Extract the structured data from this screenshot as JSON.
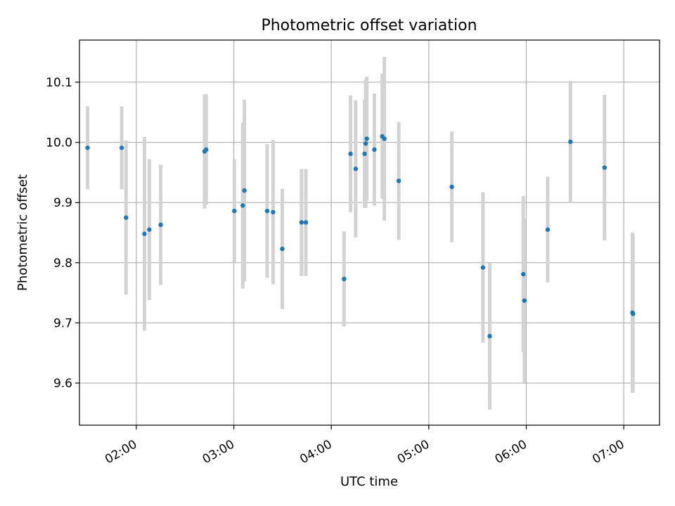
{
  "chart_data": {
    "type": "scatter",
    "title": "Photometric offset variation",
    "xlabel": "UTC time",
    "ylabel": "Photometric offset",
    "xlim": [
      "01:25",
      "07:22"
    ],
    "ylim": [
      9.53,
      10.17
    ],
    "x_ticks": [
      "02:00",
      "03:00",
      "04:00",
      "05:00",
      "06:00",
      "07:00"
    ],
    "y_ticks": [
      9.6,
      9.7,
      9.8,
      9.9,
      10.0,
      10.1
    ],
    "grid": true,
    "colors": {
      "marker": "#1f77b4",
      "errorbar": "#d3d3d3",
      "grid": "#b0b0b0",
      "axes": "#000000"
    },
    "points": [
      {
        "x": "01:30:00",
        "y": 9.991,
        "yerr": 0.069
      },
      {
        "x": "01:51:00",
        "y": 9.991,
        "yerr": 0.069
      },
      {
        "x": "01:53:40",
        "y": 9.875,
        "yerr": 0.128
      },
      {
        "x": "02:05:00",
        "y": 9.848,
        "yerr": 0.161
      },
      {
        "x": "02:08:00",
        "y": 9.855,
        "yerr": 0.117
      },
      {
        "x": "02:15:00",
        "y": 9.863,
        "yerr": 0.1
      },
      {
        "x": "02:42:00",
        "y": 9.985,
        "yerr": 0.095
      },
      {
        "x": "02:43:00",
        "y": 9.988,
        "yerr": 0.092
      },
      {
        "x": "03:00:20",
        "y": 9.886,
        "yerr": 0.086
      },
      {
        "x": "03:05:30",
        "y": 9.895,
        "yerr": 0.138
      },
      {
        "x": "03:06:30",
        "y": 9.92,
        "yerr": 0.151
      },
      {
        "x": "03:20:30",
        "y": 9.886,
        "yerr": 0.111
      },
      {
        "x": "03:24:10",
        "y": 9.884,
        "yerr": 0.12
      },
      {
        "x": "03:29:50",
        "y": 9.823,
        "yerr": 0.1
      },
      {
        "x": "03:41:40",
        "y": 9.867,
        "yerr": 0.089
      },
      {
        "x": "03:44:20",
        "y": 9.867,
        "yerr": 0.089
      },
      {
        "x": "04:07:50",
        "y": 9.773,
        "yerr": 0.079
      },
      {
        "x": "04:11:50",
        "y": 9.981,
        "yerr": 0.097
      },
      {
        "x": "04:15:00",
        "y": 9.956,
        "yerr": 0.114
      },
      {
        "x": "04:20:30",
        "y": 9.981,
        "yerr": 0.09
      },
      {
        "x": "04:21:10",
        "y": 9.998,
        "yerr": 0.107
      },
      {
        "x": "04:21:50",
        "y": 10.006,
        "yerr": 0.103
      },
      {
        "x": "04:26:30",
        "y": 9.988,
        "yerr": 0.093
      },
      {
        "x": "04:31:20",
        "y": 10.01,
        "yerr": 0.104
      },
      {
        "x": "04:32:40",
        "y": 10.006,
        "yerr": 0.136
      },
      {
        "x": "04:41:30",
        "y": 9.936,
        "yerr": 0.098
      },
      {
        "x": "05:14:10",
        "y": 9.926,
        "yerr": 0.092
      },
      {
        "x": "05:33:20",
        "y": 9.792,
        "yerr": 0.125
      },
      {
        "x": "05:37:30",
        "y": 9.678,
        "yerr": 0.122
      },
      {
        "x": "05:58:10",
        "y": 9.781,
        "yerr": 0.13
      },
      {
        "x": "05:58:50",
        "y": 9.737,
        "yerr": 0.136
      },
      {
        "x": "06:13:10",
        "y": 9.855,
        "yerr": 0.088
      },
      {
        "x": "06:27:10",
        "y": 10.001,
        "yerr": 0.101
      },
      {
        "x": "06:48:10",
        "y": 9.958,
        "yerr": 0.121
      },
      {
        "x": "07:05:20",
        "y": 9.717,
        "yerr": 0.133
      },
      {
        "x": "07:05:40",
        "y": 9.715,
        "yerr": 0.131
      }
    ]
  }
}
